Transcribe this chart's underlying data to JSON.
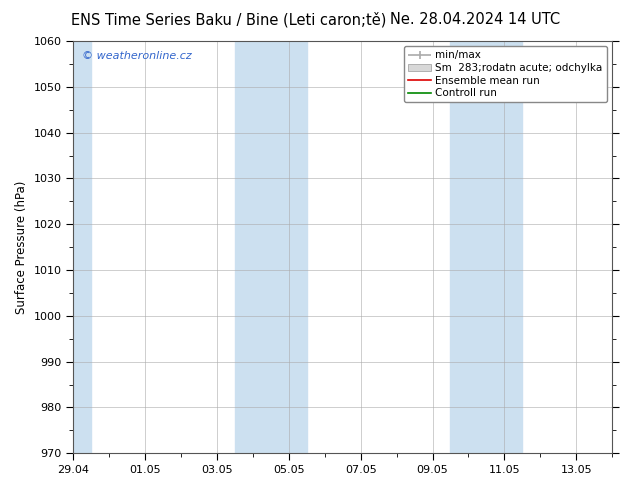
{
  "title": "ENS Time Series Baku / Bine (Leti caron;tě)",
  "title_right": "Ne. 28.04.2024 14 UTC",
  "ylabel": "Surface Pressure (hPa)",
  "watermark": "© weatheronline.cz",
  "ylim": [
    970,
    1060
  ],
  "yticks": [
    970,
    980,
    990,
    1000,
    1010,
    1020,
    1030,
    1040,
    1050,
    1060
  ],
  "xtick_labels": [
    "29.04",
    "01.05",
    "03.05",
    "05.05",
    "07.05",
    "09.05",
    "11.05",
    "13.05"
  ],
  "xtick_positions": [
    0,
    2,
    4,
    6,
    8,
    10,
    12,
    14
  ],
  "xlim": [
    0,
    15
  ],
  "fig_bg_color": "#ffffff",
  "plot_bg_color": "#ffffff",
  "shaded_ranges": [
    [
      0,
      0.5
    ],
    [
      4.5,
      6.5
    ],
    [
      10.5,
      12.5
    ]
  ],
  "shaded_color": "#cce0f0",
  "legend_labels": [
    "min/max",
    "Sm  283;rodatn acute; odchylka",
    "Ensemble mean run",
    "Controll run"
  ],
  "legend_line_colors": [
    "#aaaaaa",
    "#cccccc",
    "#dd0000",
    "#008800"
  ],
  "grid_color": "#aaaaaa",
  "spine_color": "#555555",
  "title_fontsize": 10.5,
  "tick_fontsize": 8,
  "ylabel_fontsize": 8.5,
  "watermark_color": "#3366cc"
}
